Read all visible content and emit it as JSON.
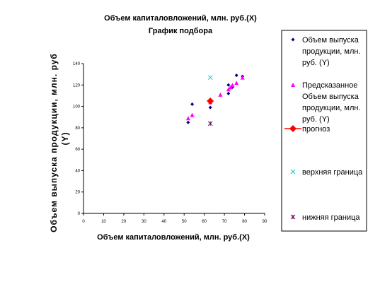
{
  "chart_data": {
    "type": "scatter",
    "title": "Объем капиталовложений, млн. руб.(X)",
    "subtitle": "График подбора",
    "xlabel": "Объем капиталовложений, млн. руб.(X)",
    "ylabel_line1": "Объем выпуска продукции, млн. руб",
    "ylabel_line2": "(Y)",
    "xlim": [
      0,
      90
    ],
    "ylim": [
      0,
      140
    ],
    "x_ticks": [
      "0",
      "10",
      "20",
      "30",
      "40",
      "50",
      "60",
      "70",
      "80",
      "90"
    ],
    "y_ticks": [
      "0",
      "20",
      "40",
      "60",
      "80",
      "100",
      "120",
      "140"
    ],
    "grid": false,
    "legend_position": "right",
    "series": [
      {
        "name": "Объем выпуска продукции, млн. руб. (Y)",
        "legend_lines": [
          "Объем выпуска",
          "продукции, млн.",
          "руб. (Y)"
        ],
        "marker": "diamond",
        "color": "#000080",
        "points": [
          [
            52,
            85
          ],
          [
            54,
            102
          ],
          [
            63,
            99
          ],
          [
            72,
            112
          ],
          [
            72,
            120
          ],
          [
            74,
            118
          ],
          [
            76,
            129
          ],
          [
            79,
            128
          ]
        ]
      },
      {
        "name": "Предсказанное Объем выпуска продукции, млн. руб. (Y)",
        "legend_lines": [
          "Предсказанное",
          "Объем выпуска",
          "продукции, млн.",
          "руб. (Y)"
        ],
        "marker": "triangle",
        "color": "#ff00ff",
        "points": [
          [
            52,
            89
          ],
          [
            54,
            92
          ],
          [
            63,
            104
          ],
          [
            68,
            111
          ],
          [
            72,
            116
          ],
          [
            73,
            118
          ],
          [
            74,
            120
          ],
          [
            76,
            122
          ],
          [
            79,
            127
          ]
        ]
      },
      {
        "name": "прогноз",
        "legend_lines": [
          "прогноз"
        ],
        "marker": "big-diamond",
        "color": "#ff0000",
        "points": [
          [
            63,
            105
          ]
        ]
      },
      {
        "name": "верхняя граница",
        "legend_lines": [
          "верхняя граница"
        ],
        "marker": "x",
        "color": "#00cccc",
        "points": [
          [
            63,
            127
          ]
        ]
      },
      {
        "name": "нижняя граница",
        "legend_lines": [
          "нижняя граница"
        ],
        "marker": "star",
        "color": "#660066",
        "points": [
          [
            63,
            84
          ]
        ]
      }
    ]
  }
}
